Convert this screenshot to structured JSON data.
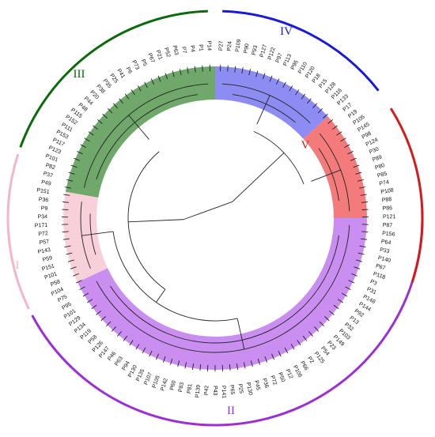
{
  "figure": {
    "type": "circular-dendrogram",
    "clusters": [
      {
        "id": "I",
        "label": "I",
        "color": "#f4b6c6",
        "band_color": "#f8d0da",
        "start_deg": 245,
        "end_deg": 280,
        "arc_start": 244,
        "arc_end": 288
      },
      {
        "id": "II",
        "label": "II",
        "color": "#9b2fd4",
        "band_color": "#c98ef0",
        "start_deg": 90,
        "end_deg": 245,
        "arc_start": 88,
        "arc_end": 242
      },
      {
        "id": "III",
        "label": "III",
        "color": "#0c6a0c",
        "band_color": "#6fa86a",
        "start_deg": 280,
        "end_deg": 360,
        "arc_start": 290,
        "arc_end": 358
      },
      {
        "id": "IV",
        "label": "IV",
        "color": "#1a1ad6",
        "band_color": "#8c8cf2",
        "start_deg": 0,
        "end_deg": 48,
        "arc_start": 2,
        "arc_end": 52
      },
      {
        "id": "V",
        "label": "V",
        "color": "#d41a1a",
        "band_color": "#f47b7b",
        "start_deg": 48,
        "end_deg": 90,
        "arc_start": 58,
        "arc_end": 108
      }
    ],
    "leaves": [
      "P27",
      "P24",
      "P109",
      "P90",
      "P93",
      "P127",
      "P122",
      "P97",
      "P113",
      "P95",
      "P110",
      "P120",
      "P18",
      "P15",
      "P128",
      "P116",
      "P133",
      "P17",
      "P19",
      "P105",
      "P145",
      "P98",
      "P124",
      "P30",
      "P89",
      "P80",
      "P85",
      "P74",
      "P108",
      "P88",
      "P86",
      "P121",
      "P87",
      "P156",
      "P64",
      "P33",
      "P140",
      "P67",
      "P118",
      "P3",
      "P31",
      "P148",
      "P144",
      "P92",
      "P13",
      "P32",
      "P103",
      "P149",
      "P23",
      "P54",
      "P125",
      "P2",
      "P66",
      "P106",
      "P12",
      "P50",
      "P72",
      "P36",
      "P45",
      "P130",
      "P25",
      "P65",
      "P141",
      "P43",
      "P42",
      "P139",
      "P81",
      "P83",
      "P60",
      "P142",
      "P105",
      "P107",
      "P135",
      "P130",
      "P94",
      "P63",
      "P46",
      "P147",
      "P126",
      "P58",
      "P119",
      "P134",
      "P129",
      "P101",
      "P95",
      "P75",
      "P104",
      "P58",
      "P101",
      "P151",
      "P59",
      "P143",
      "P57",
      "P72",
      "P171",
      "P34",
      "P9",
      "P36",
      "P151",
      "P49",
      "P37",
      "P82",
      "P101",
      "P123",
      "P117",
      "P153",
      "P111",
      "P152",
      "P115",
      "P48",
      "P44",
      "P20",
      "P38",
      "P35",
      "P25",
      "P41",
      "P6",
      "P73",
      "P5",
      "P67",
      "P21",
      "P52",
      "P63",
      "P7",
      "P4",
      "P1",
      "P14"
    ]
  }
}
